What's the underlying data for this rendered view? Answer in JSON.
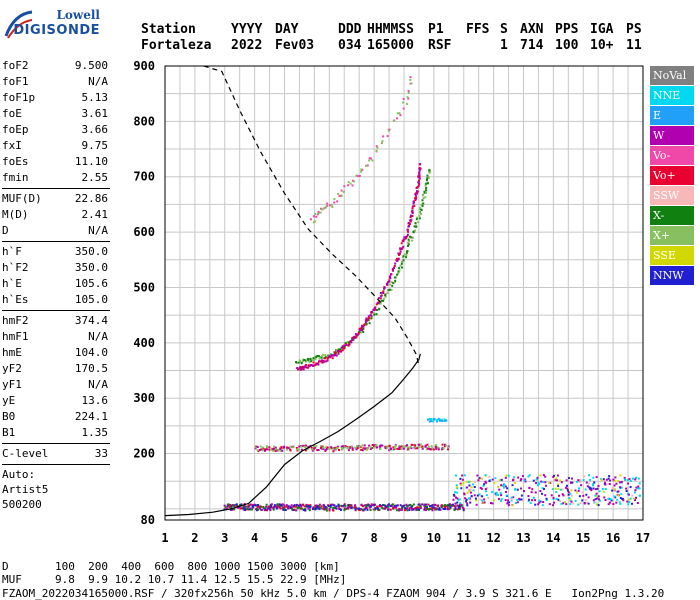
{
  "logo": {
    "line1": "Lowell",
    "line2": "DIGISONDE"
  },
  "header": {
    "labels": [
      "Station",
      "YYYY",
      "DAY",
      "DDD",
      "HHMMSS",
      "P1",
      "FFS",
      "S",
      "AXN",
      "PPS",
      "IGA",
      "PS"
    ],
    "values": [
      "Fortaleza",
      "2022",
      "Fev03",
      "034",
      "165000",
      "RSF",
      "1",
      "714",
      "100",
      "10+",
      "11"
    ]
  },
  "params": {
    "group1": [
      {
        "label": "foF2",
        "value": "9.500"
      },
      {
        "label": "foF1",
        "value": "N/A"
      },
      {
        "label": "foF1p",
        "value": "5.13"
      },
      {
        "label": "foE",
        "value": "3.61"
      },
      {
        "label": "foEp",
        "value": "3.66"
      },
      {
        "label": "fxI",
        "value": "9.75"
      },
      {
        "label": "foEs",
        "value": "11.10"
      },
      {
        "label": "fmin",
        "value": "2.55"
      }
    ],
    "group2": [
      {
        "label": "MUF(D)",
        "value": "22.86"
      },
      {
        "label": "M(D)",
        "value": "2.41"
      },
      {
        "label": "D",
        "value": "N/A"
      }
    ],
    "group3": [
      {
        "label": "h`F",
        "value": "350.0"
      },
      {
        "label": "h`F2",
        "value": "350.0"
      },
      {
        "label": "h`E",
        "value": "105.6"
      },
      {
        "label": "h`Es",
        "value": "105.0"
      }
    ],
    "group4": [
      {
        "label": "hmF2",
        "value": "374.4"
      },
      {
        "label": "hmF1",
        "value": "N/A"
      },
      {
        "label": "hmE",
        "value": "104.0"
      },
      {
        "label": "yF2",
        "value": "170.5"
      },
      {
        "label": "yF1",
        "value": "N/A"
      },
      {
        "label": "yE",
        "value": "13.6"
      },
      {
        "label": "B0",
        "value": "224.1"
      },
      {
        "label": "B1",
        "value": "1.35"
      }
    ],
    "group5": [
      {
        "label": "C-level",
        "value": "33"
      }
    ],
    "auto": [
      "Auto:",
      "Artist5",
      "500200"
    ]
  },
  "legend": [
    {
      "label": "NoVal",
      "color": "#808080"
    },
    {
      "label": "NNE",
      "color": "#00d8f0"
    },
    {
      "label": "E",
      "color": "#20a0f8"
    },
    {
      "label": "W",
      "color": "#b000b0"
    },
    {
      "label": "Vo-",
      "color": "#f048a8"
    },
    {
      "label": "Vo+",
      "color": "#e80030"
    },
    {
      "label": "SSW",
      "color": "#f8b8b8"
    },
    {
      "label": "X-",
      "color": "#108010"
    },
    {
      "label": "X+",
      "color": "#88c060"
    },
    {
      "label": "SSE",
      "color": "#d0d800"
    },
    {
      "label": "NNW",
      "color": "#2020d0"
    }
  ],
  "chart_data": {
    "type": "scatter",
    "xlabel": "",
    "ylabel": "",
    "xlim": [
      1,
      17
    ],
    "ylim": [
      80,
      900
    ],
    "xticks": [
      1,
      2,
      3,
      4,
      5,
      6,
      7,
      8,
      9,
      10,
      11,
      12,
      13,
      14,
      15,
      16,
      17
    ],
    "yticks": [
      80,
      200,
      300,
      400,
      500,
      600,
      700,
      800,
      900
    ],
    "grid": true,
    "profile_line": {
      "x": [
        1.0,
        1.8,
        2.6,
        3.2,
        3.8,
        4.4,
        5.0,
        5.6,
        6.2,
        6.8,
        7.4,
        8.0,
        8.6,
        9.0,
        9.3,
        9.5,
        9.55
      ],
      "y": [
        88,
        90,
        94,
        100,
        110,
        140,
        180,
        205,
        222,
        240,
        262,
        285,
        310,
        335,
        355,
        370,
        380
      ]
    },
    "profile_dashed": {
      "x": [
        2.3,
        2.9,
        3.5,
        4.2,
        5.0,
        5.8,
        6.6,
        7.4,
        8.1,
        8.7,
        9.1,
        9.4,
        9.5
      ],
      "y": [
        900,
        890,
        820,
        745,
        670,
        605,
        560,
        520,
        480,
        445,
        410,
        380,
        360
      ]
    },
    "trace_f2_oplus": {
      "x": [
        5.4,
        5.8,
        6.3,
        6.8,
        7.3,
        7.7,
        8.1,
        8.5,
        8.8,
        9.1,
        9.3,
        9.45,
        9.52
      ],
      "y": [
        355,
        360,
        370,
        385,
        410,
        440,
        475,
        520,
        560,
        605,
        650,
        690,
        725
      ]
    },
    "trace_f2_xplus": {
      "x": [
        5.4,
        5.9,
        6.5,
        7.0,
        7.5,
        8.0,
        8.5,
        8.9,
        9.2,
        9.5,
        9.7,
        9.85
      ],
      "y": [
        365,
        372,
        380,
        395,
        420,
        455,
        500,
        545,
        590,
        635,
        680,
        720
      ]
    },
    "trace_f2_multi": {
      "x": [
        5.9,
        6.2,
        6.6,
        7.0,
        7.5,
        8.0,
        8.5,
        9.0,
        9.3
      ],
      "y": [
        620,
        640,
        655,
        680,
        710,
        745,
        790,
        840,
        890
      ]
    },
    "trace_e_layer": {
      "x": [
        3.0,
        3.5,
        4.0,
        4.5,
        5.0,
        5.5,
        6.0,
        6.5,
        7.0,
        7.5,
        8.0,
        8.5,
        9.0,
        9.5,
        10.0,
        10.5,
        11.0
      ],
      "y": [
        105,
        106,
        104,
        105,
        105,
        104,
        105,
        104,
        105,
        104,
        105,
        105,
        104,
        105,
        104,
        105,
        104
      ]
    },
    "trace_es_double": {
      "x": [
        4.0,
        4.5,
        5.0,
        5.5,
        6.0,
        6.5,
        7.0,
        7.5,
        8.0,
        8.5,
        9.0,
        9.5,
        10.0,
        10.5
      ],
      "y": [
        210,
        211,
        210,
        212,
        211,
        210,
        212,
        212,
        213,
        212,
        213,
        214,
        213,
        214
      ]
    },
    "trace_e_upper": {
      "x": [
        9.8,
        10.1,
        10.4
      ],
      "y": [
        262,
        262,
        263
      ]
    }
  },
  "footer": {
    "line1": "D       100  200  400  600  800 1000 1500 3000 [km]",
    "line2": "MUF     9.8  9.9 10.2 10.7 11.4 12.5 15.5 22.9 [MHz]",
    "line3": "FZAOM_2022034165000.RSF / 320fx256h 50 kHz 5.0 km / DPS-4 FZAOM 904 / 3.9 S 321.6 E   Ion2Png 1.3.20"
  }
}
